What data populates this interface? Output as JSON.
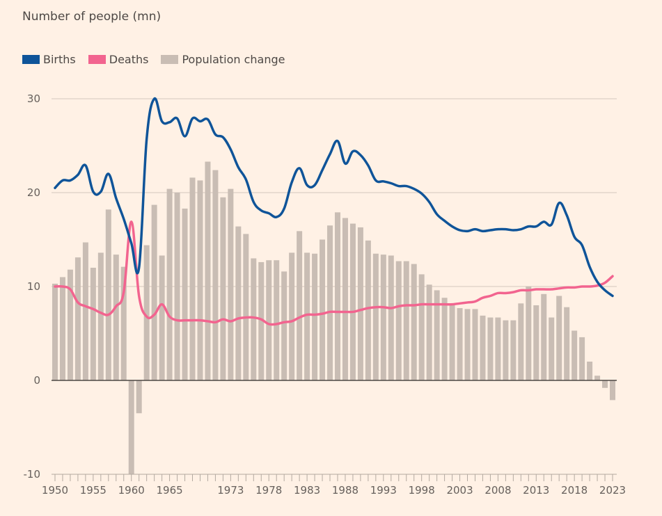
{
  "header": {
    "subtitle": "Number of people (mn)"
  },
  "legend": [
    {
      "label": "Births",
      "color": "#0f5499"
    },
    {
      "label": "Deaths",
      "color": "#f2648f"
    },
    {
      "label": "Population change",
      "color": "#c9bdb4"
    }
  ],
  "chart_data": {
    "type": "bar+line",
    "title": "",
    "ylabel": "Number of people (mn)",
    "xlabel": "",
    "ylim": [
      -10,
      30
    ],
    "yticks": [
      30,
      20,
      10,
      0,
      -10
    ],
    "xticks": [
      1950,
      1955,
      1960,
      1965,
      1973,
      1978,
      1983,
      1988,
      1993,
      1998,
      2003,
      2008,
      2013,
      2018,
      2023
    ],
    "grid": true,
    "legend_position": "top-left",
    "x": [
      1950,
      1951,
      1952,
      1953,
      1954,
      1955,
      1956,
      1957,
      1958,
      1959,
      1960,
      1961,
      1962,
      1963,
      1964,
      1965,
      1966,
      1967,
      1968,
      1969,
      1970,
      1971,
      1972,
      1973,
      1974,
      1975,
      1976,
      1977,
      1978,
      1979,
      1980,
      1981,
      1982,
      1983,
      1984,
      1985,
      1986,
      1987,
      1988,
      1989,
      1990,
      1991,
      1992,
      1993,
      1994,
      1995,
      1996,
      1997,
      1998,
      1999,
      2000,
      2001,
      2002,
      2003,
      2004,
      2005,
      2006,
      2007,
      2008,
      2009,
      2010,
      2011,
      2012,
      2013,
      2014,
      2015,
      2016,
      2017,
      2018,
      2019,
      2020,
      2021,
      2022,
      2023
    ],
    "series": [
      {
        "name": "Population change",
        "type": "bar",
        "color": "#c9bdb4",
        "values": [
          10.3,
          11.0,
          11.8,
          13.1,
          14.7,
          12.0,
          13.6,
          18.2,
          13.4,
          12.1,
          -10.0,
          -3.5,
          14.4,
          18.7,
          13.3,
          20.4,
          20.0,
          18.3,
          21.6,
          21.3,
          23.3,
          22.4,
          19.5,
          20.4,
          16.4,
          15.6,
          13.0,
          12.6,
          12.8,
          12.8,
          11.6,
          13.6,
          15.9,
          13.6,
          13.5,
          15.0,
          16.5,
          17.9,
          17.3,
          16.7,
          16.3,
          14.9,
          13.5,
          13.4,
          13.3,
          12.7,
          12.7,
          12.4,
          11.3,
          10.2,
          9.6,
          8.8,
          8.1,
          7.7,
          7.6,
          7.6,
          6.9,
          6.7,
          6.7,
          6.4,
          6.4,
          8.2,
          10.0,
          8.0,
          9.2,
          6.7,
          9.0,
          7.8,
          5.3,
          4.6,
          2.0,
          0.5,
          -0.8,
          -2.1
        ]
      },
      {
        "name": "Births",
        "type": "line",
        "color": "#0f5499",
        "values": [
          20.5,
          21.3,
          21.3,
          21.9,
          22.9,
          20.1,
          20.1,
          22.0,
          19.4,
          17.2,
          14.6,
          12.0,
          25.7,
          30.0,
          27.6,
          27.5,
          27.9,
          26.0,
          27.9,
          27.6,
          27.8,
          26.2,
          25.9,
          24.6,
          22.7,
          21.4,
          19.0,
          18.1,
          17.8,
          17.4,
          18.3,
          21.1,
          22.6,
          20.8,
          20.8,
          22.4,
          24.1,
          25.5,
          23.1,
          24.4,
          24.0,
          22.9,
          21.3,
          21.2,
          21.0,
          20.7,
          20.7,
          20.4,
          19.9,
          19.0,
          17.7,
          17.0,
          16.4,
          16.0,
          15.9,
          16.1,
          15.9,
          16.0,
          16.1,
          16.1,
          16.0,
          16.1,
          16.4,
          16.4,
          16.9,
          16.6,
          18.9,
          17.6,
          15.3,
          14.4,
          12.1,
          10.5,
          9.6,
          9.0
        ]
      },
      {
        "name": "Deaths",
        "type": "line",
        "color": "#f2648f",
        "values": [
          10.0,
          10.0,
          9.7,
          8.3,
          7.9,
          7.6,
          7.2,
          7.0,
          7.9,
          9.4,
          16.9,
          9.0,
          6.8,
          7.0,
          8.1,
          6.8,
          6.4,
          6.4,
          6.4,
          6.4,
          6.3,
          6.2,
          6.5,
          6.3,
          6.6,
          6.7,
          6.7,
          6.5,
          6.0,
          6.0,
          6.2,
          6.3,
          6.7,
          7.0,
          7.0,
          7.1,
          7.3,
          7.3,
          7.3,
          7.3,
          7.5,
          7.7,
          7.8,
          7.8,
          7.7,
          7.9,
          8.0,
          8.0,
          8.1,
          8.1,
          8.1,
          8.1,
          8.1,
          8.2,
          8.3,
          8.4,
          8.8,
          9.0,
          9.3,
          9.3,
          9.4,
          9.6,
          9.6,
          9.7,
          9.7,
          9.7,
          9.8,
          9.9,
          9.9,
          10.0,
          10.0,
          10.1,
          10.4,
          11.1
        ]
      }
    ]
  }
}
